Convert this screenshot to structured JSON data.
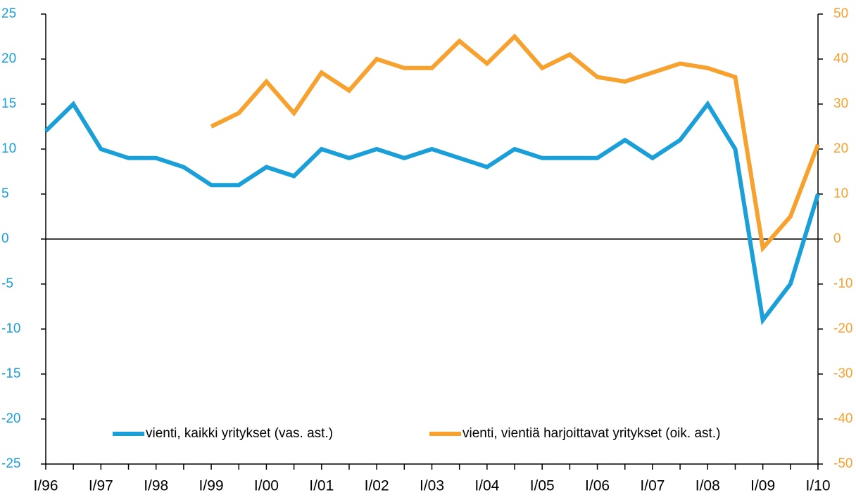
{
  "chart_data": {
    "type": "line",
    "categories": [
      "I/96",
      null,
      "I/97",
      null,
      "I/98",
      null,
      "I/99",
      null,
      "I/00",
      null,
      "I/01",
      null,
      "I/02",
      null,
      "I/03",
      null,
      "I/04",
      null,
      "I/05",
      null,
      "I/06",
      null,
      "I/07",
      null,
      "I/08",
      null,
      "I/09",
      null,
      "I/10"
    ],
    "series": [
      {
        "name": "vienti, kaikki yritykset (vas. ast.)",
        "color": "#1a9fd9",
        "values": [
          12,
          15,
          10,
          9,
          9,
          8,
          6,
          6,
          8,
          7,
          10,
          9,
          10,
          9,
          10,
          9,
          8,
          10,
          9,
          9,
          9,
          11,
          9,
          11,
          15,
          10,
          -9,
          -5,
          5
        ]
      },
      {
        "name": "vienti, vientiä harjoittavat yritykset (oik. ast.)",
        "color": "#f7a12e",
        "axis": "y2",
        "values": [
          null,
          null,
          null,
          null,
          null,
          null,
          25,
          28,
          35,
          28,
          37,
          33,
          40,
          38,
          38,
          44,
          39,
          45,
          38,
          41,
          36,
          35,
          37,
          39,
          38,
          36,
          -2,
          5,
          21
        ]
      }
    ],
    "ylim": [
      -25,
      25
    ],
    "yticks": [
      -25,
      -20,
      -15,
      -10,
      -5,
      0,
      5,
      10,
      15,
      20,
      25
    ],
    "y2lim": [
      -50,
      50
    ],
    "y2ticks": [
      -50,
      -40,
      -30,
      -20,
      -10,
      0,
      10,
      20,
      30,
      40,
      50
    ],
    "legend": "lower center"
  }
}
